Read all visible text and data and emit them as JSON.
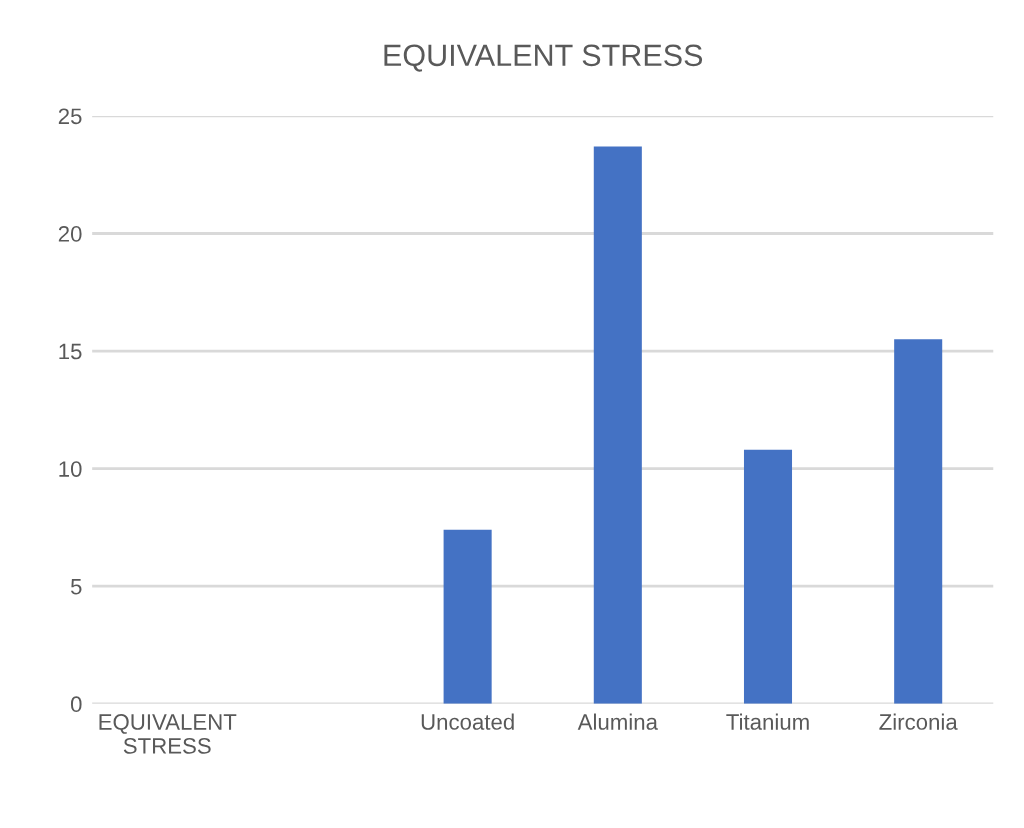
{
  "chart_data": {
    "type": "bar",
    "title": "EQUIVALENT STRESS",
    "categories": [
      "EQUIVALENT\nSTRESS",
      null,
      "Uncoated",
      "Alumina",
      "Titanium",
      "Zirconia"
    ],
    "values": [
      null,
      null,
      7.4,
      23.7,
      10.8,
      15.5
    ],
    "color": "#4472c4",
    "ylim": [
      0,
      25
    ],
    "yticks": [
      0,
      5,
      10,
      15,
      20,
      25
    ],
    "grid": "y",
    "legend": false
  }
}
